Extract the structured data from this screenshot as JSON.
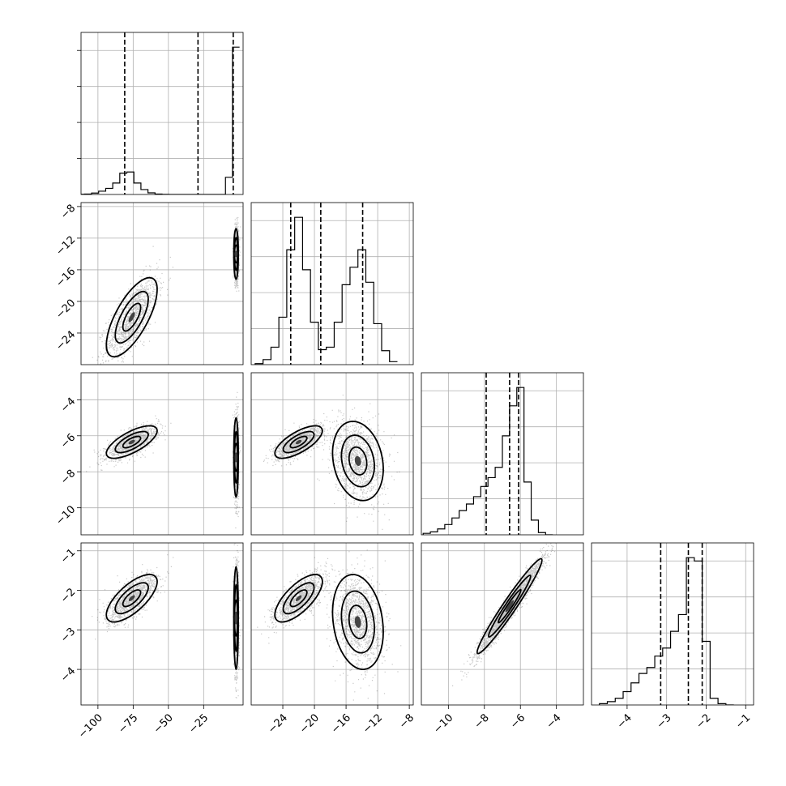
{
  "chart_data": {
    "type": "corner",
    "grid": true,
    "parameters": [
      {
        "index": 0,
        "range": [
          -112,
          3
        ],
        "ticks": [
          -100,
          -75,
          -50,
          -25
        ],
        "tick_labels": [
          "−100",
          "−75",
          "−50",
          "−25"
        ],
        "quantiles": [
          -81,
          -29,
          -4
        ],
        "histogram": [
          {
            "x": -112,
            "y": 0.005
          },
          {
            "x": -107,
            "y": 0.01
          },
          {
            "x": -102,
            "y": 0.035
          },
          {
            "x": -97,
            "y": 0.08
          },
          {
            "x": -92,
            "y": 0.15
          },
          {
            "x": -87,
            "y": 0.28
          },
          {
            "x": -82,
            "y": 0.52
          },
          {
            "x": -77,
            "y": 0.55
          },
          {
            "x": -72,
            "y": 0.28
          },
          {
            "x": -67,
            "y": 0.12
          },
          {
            "x": -62,
            "y": 0.04
          },
          {
            "x": -57,
            "y": 0.01
          },
          {
            "x": -52,
            "y": 0.003
          },
          {
            "x": -47,
            "y": 0
          },
          {
            "x": -12,
            "y": 0
          },
          {
            "x": -7,
            "y": 0.42
          },
          {
            "x": -2,
            "y": 3.6
          }
        ]
      },
      {
        "index": 1,
        "range": [
          -28,
          -7.5
        ],
        "ticks": [
          -24,
          -20,
          -16,
          -12,
          -8
        ],
        "tick_labels": [
          "−24",
          "−20",
          "−16",
          "−12",
          "−8"
        ],
        "quantiles": [
          -23,
          -19.2,
          -13.9
        ],
        "histogram": [
          {
            "x": -27,
            "y": 0.02
          },
          {
            "x": -26,
            "y": 0.1
          },
          {
            "x": -25,
            "y": 0.35
          },
          {
            "x": -24,
            "y": 0.95
          },
          {
            "x": -23,
            "y": 2.3
          },
          {
            "x": -22,
            "y": 2.95
          },
          {
            "x": -21,
            "y": 1.9
          },
          {
            "x": -20,
            "y": 0.85
          },
          {
            "x": -19,
            "y": 0.3
          },
          {
            "x": -18,
            "y": 0.35
          },
          {
            "x": -17,
            "y": 0.85
          },
          {
            "x": -16,
            "y": 1.6
          },
          {
            "x": -15,
            "y": 1.95
          },
          {
            "x": -14,
            "y": 2.3
          },
          {
            "x": -13,
            "y": 1.65
          },
          {
            "x": -12,
            "y": 0.82
          },
          {
            "x": -11,
            "y": 0.28
          },
          {
            "x": -10,
            "y": 0.06
          }
        ]
      },
      {
        "index": 2,
        "range": [
          -11.5,
          -2.5
        ],
        "ticks": [
          -10,
          -8,
          -6,
          -4
        ],
        "tick_labels": [
          "−10",
          "−8",
          "−6",
          "−4"
        ],
        "quantiles": [
          -7.9,
          -6.6,
          -6.1
        ],
        "histogram": [
          {
            "x": -11.2,
            "y": 0.02
          },
          {
            "x": -10.8,
            "y": 0.04
          },
          {
            "x": -10.4,
            "y": 0.08
          },
          {
            "x": -10.0,
            "y": 0.14
          },
          {
            "x": -9.6,
            "y": 0.23
          },
          {
            "x": -9.2,
            "y": 0.33
          },
          {
            "x": -8.8,
            "y": 0.42
          },
          {
            "x": -8.4,
            "y": 0.52
          },
          {
            "x": -8.0,
            "y": 0.66
          },
          {
            "x": -7.6,
            "y": 0.78
          },
          {
            "x": -7.2,
            "y": 0.92
          },
          {
            "x": -6.8,
            "y": 1.35
          },
          {
            "x": -6.4,
            "y": 1.76
          },
          {
            "x": -6.0,
            "y": 2.01
          },
          {
            "x": -5.6,
            "y": 0.72
          },
          {
            "x": -5.2,
            "y": 0.2
          },
          {
            "x": -4.8,
            "y": 0.03
          },
          {
            "x": -4.4,
            "y": 0
          }
        ]
      },
      {
        "index": 3,
        "range": [
          -4.9,
          -0.8
        ],
        "ticks": [
          -4,
          -3,
          -2,
          -1
        ],
        "tick_labels": [
          "−4",
          "−3",
          "−2",
          "−1"
        ],
        "quantiles": [
          -3.15,
          -2.45,
          -2.1
        ],
        "histogram": [
          {
            "x": -4.6,
            "y": 0.02
          },
          {
            "x": -4.4,
            "y": 0.05
          },
          {
            "x": -4.2,
            "y": 0.1
          },
          {
            "x": -4.0,
            "y": 0.2
          },
          {
            "x": -3.8,
            "y": 0.33
          },
          {
            "x": -3.6,
            "y": 0.47
          },
          {
            "x": -3.4,
            "y": 0.56
          },
          {
            "x": -3.2,
            "y": 0.73
          },
          {
            "x": -3.0,
            "y": 0.85
          },
          {
            "x": -2.8,
            "y": 1.1
          },
          {
            "x": -2.6,
            "y": 1.35
          },
          {
            "x": -2.4,
            "y": 2.2
          },
          {
            "x": -2.2,
            "y": 2.15
          },
          {
            "x": -2.0,
            "y": 0.95
          },
          {
            "x": -1.8,
            "y": 0.1
          },
          {
            "x": -1.6,
            "y": 0.02
          },
          {
            "x": -1.4,
            "y": 0
          }
        ]
      }
    ],
    "pairs": [
      {
        "row": 1,
        "col": 0,
        "clusters": [
          {
            "center": [
              -76,
              -22
            ],
            "spread": [
              9,
              2.5
            ],
            "corr": 0.7,
            "weight": 0.5
          },
          {
            "center": [
              -2,
              -14
            ],
            "spread": [
              0.8,
              1.6
            ],
            "corr": 0,
            "weight": 0.5
          }
        ]
      },
      {
        "row": 2,
        "col": 0,
        "clusters": [
          {
            "center": [
              -76,
              -6.35
            ],
            "spread": [
              9,
              0.45
            ],
            "corr": 0.7,
            "weight": 0.5
          },
          {
            "center": [
              -2,
              -7.2
            ],
            "spread": [
              0.8,
              1.1
            ],
            "corr": 0,
            "weight": 0.5
          }
        ]
      },
      {
        "row": 2,
        "col": 1,
        "clusters": [
          {
            "center": [
              -22,
              -6.35
            ],
            "spread": [
              1.5,
              0.45
            ],
            "corr": 0.7,
            "weight": 0.5
          },
          {
            "center": [
              -14.5,
              -7.4
            ],
            "spread": [
              1.6,
              1.1
            ],
            "corr": -0.2,
            "weight": 0.5
          }
        ]
      },
      {
        "row": 3,
        "col": 0,
        "clusters": [
          {
            "center": [
              -76,
              -2.2
            ],
            "spread": [
              9,
              0.3
            ],
            "corr": 0.7,
            "weight": 0.5
          },
          {
            "center": [
              -2,
              -2.7
            ],
            "spread": [
              0.8,
              0.65
            ],
            "corr": 0,
            "weight": 0.5
          }
        ]
      },
      {
        "row": 3,
        "col": 1,
        "clusters": [
          {
            "center": [
              -22,
              -2.2
            ],
            "spread": [
              1.5,
              0.3
            ],
            "corr": 0.7,
            "weight": 0.5
          },
          {
            "center": [
              -14.5,
              -2.8
            ],
            "spread": [
              1.6,
              0.6
            ],
            "corr": -0.2,
            "weight": 0.5
          }
        ]
      },
      {
        "row": 3,
        "col": 2,
        "clusters": [
          {
            "center": [
              -6.6,
              -2.4
            ],
            "spread": [
              0.9,
              0.6
            ],
            "corr": 0.97,
            "weight": 1
          }
        ]
      }
    ]
  }
}
